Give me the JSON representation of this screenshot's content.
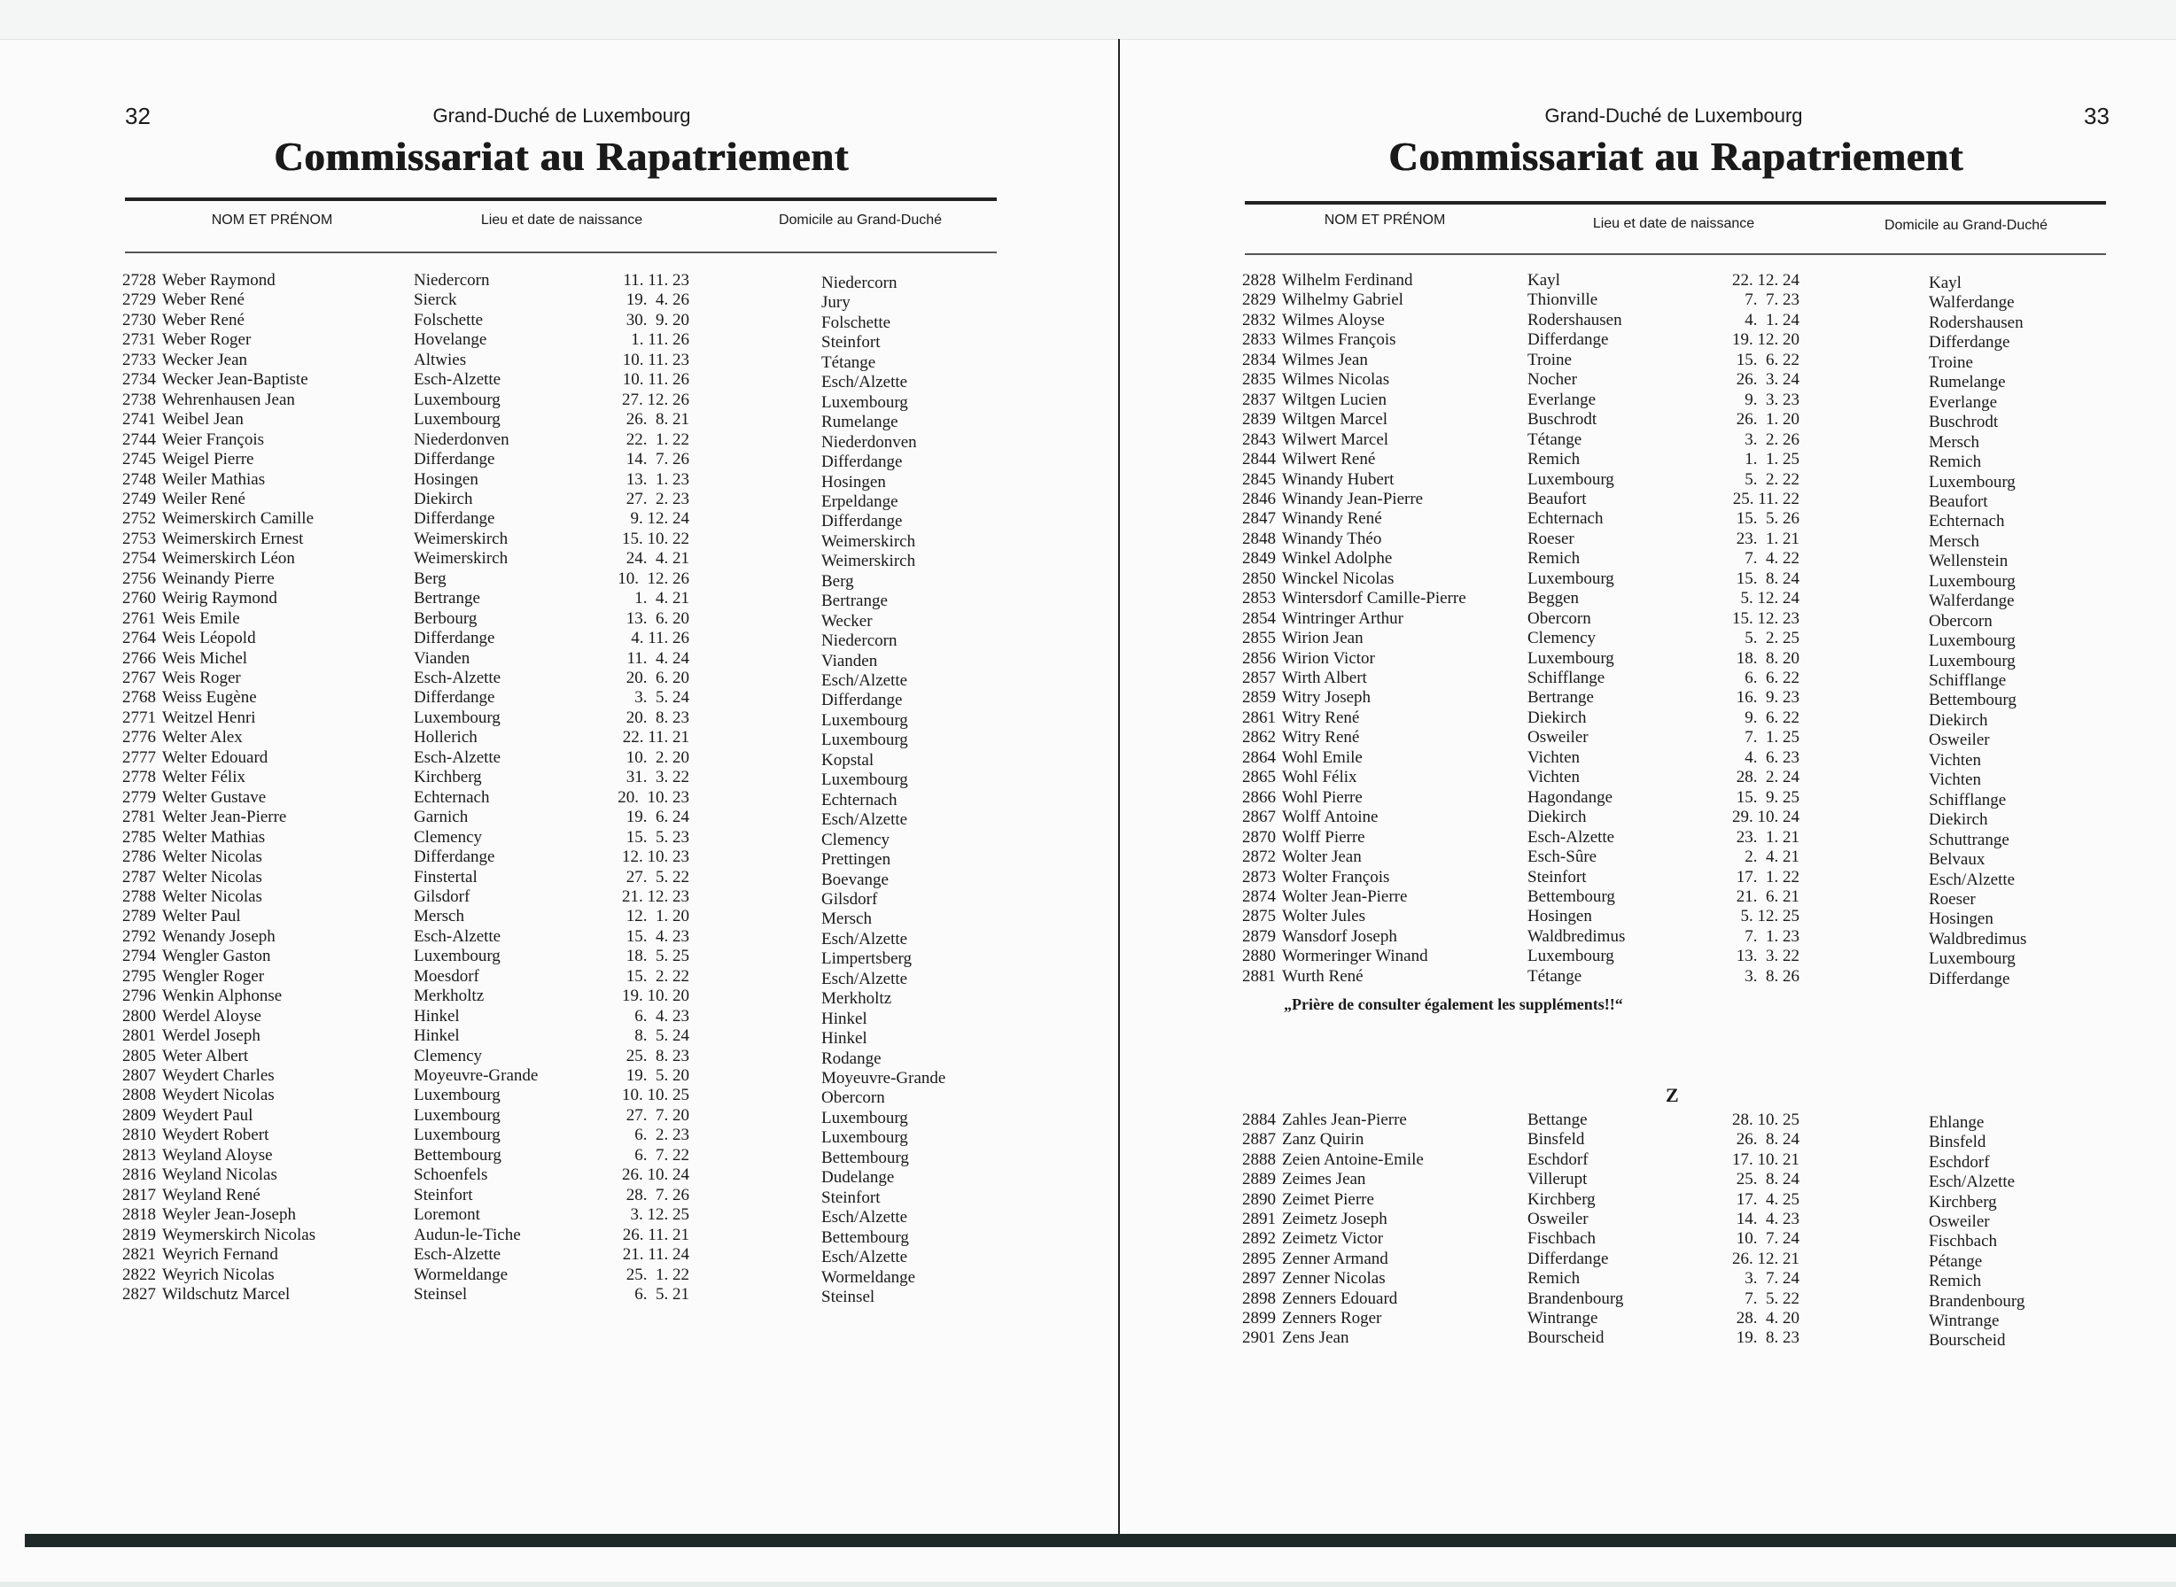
{
  "header": {
    "country": "Grand-Duché de Luxembourg",
    "title": "Commissariat au Rapatriement",
    "columns": [
      "NOM ET PRÉNOM",
      "Lieu et date de naissance",
      "Domicile au Grand-Duché"
    ]
  },
  "left_page": {
    "page_number": "32",
    "rows": [
      [
        "2728",
        "Weber Raymond",
        "Niedercorn",
        "11. 11. 23",
        "Niedercorn"
      ],
      [
        "2729",
        "Weber René",
        "Sierck",
        "19.  4. 26",
        "Jury"
      ],
      [
        "2730",
        "Weber René",
        "Folschette",
        "30.  9. 20",
        "Folschette"
      ],
      [
        "2731",
        "Weber Roger",
        "Hovelange",
        "1. 11. 26",
        "Steinfort"
      ],
      [
        "2733",
        "Wecker Jean",
        "Altwies",
        "10. 11. 23",
        "Tétange"
      ],
      [
        "2734",
        "Wecker Jean-Baptiste",
        "Esch-Alzette",
        "10. 11. 26",
        "Esch/Alzette"
      ],
      [
        "2738",
        "Wehrenhausen Jean",
        "Luxembourg",
        "27. 12. 26",
        "Luxembourg"
      ],
      [
        "2741",
        "Weibel Jean",
        "Luxembourg",
        "26.  8. 21",
        "Rumelange"
      ],
      [
        "2744",
        "Weier François",
        "Niederdonven",
        "22.  1. 22",
        "Niederdonven"
      ],
      [
        "2745",
        "Weigel Pierre",
        "Differdange",
        "14.  7. 26",
        "Differdange"
      ],
      [
        "2748",
        "Weiler Mathias",
        "Hosingen",
        "13.  1. 23",
        "Hosingen"
      ],
      [
        "2749",
        "Weiler René",
        "Diekirch",
        "27.  2. 23",
        "Erpeldange"
      ],
      [
        "2752",
        "Weimerskirch Camille",
        "Differdange",
        "9. 12. 24",
        "Differdange"
      ],
      [
        "2753",
        "Weimerskirch Ernest",
        "Weimerskirch",
        "15. 10. 22",
        "Weimerskirch"
      ],
      [
        "2754",
        "Weimerskirch Léon",
        "Weimerskirch",
        "24.  4. 21",
        "Weimerskirch"
      ],
      [
        "2756",
        "Weinandy Pierre",
        "Berg",
        "10.  12. 26",
        "Berg"
      ],
      [
        "2760",
        "Weirig Raymond",
        "Bertrange",
        "1.  4. 21",
        "Bertrange"
      ],
      [
        "2761",
        "Weis Emile",
        "Berbourg",
        "13.  6. 20",
        "Wecker"
      ],
      [
        "2764",
        "Weis Léopold",
        "Differdange",
        "4. 11. 26",
        "Niedercorn"
      ],
      [
        "2766",
        "Weis Michel",
        "Vianden",
        "11.  4. 24",
        "Vianden"
      ],
      [
        "2767",
        "Weis Roger",
        "Esch-Alzette",
        "20.  6. 20",
        "Esch/Alzette"
      ],
      [
        "2768",
        "Weiss Eugène",
        "Differdange",
        "3.  5. 24",
        "Differdange"
      ],
      [
        "2771",
        "Weitzel Henri",
        "Luxembourg",
        "20.  8. 23",
        "Luxembourg"
      ],
      [
        "2776",
        "Welter Alex",
        "Hollerich",
        "22. 11. 21",
        "Luxembourg"
      ],
      [
        "2777",
        "Welter Edouard",
        "Esch-Alzette",
        "10.  2. 20",
        "Kopstal"
      ],
      [
        "2778",
        "Welter Félix",
        "Kirchberg",
        "31.  3. 22",
        "Luxembourg"
      ],
      [
        "2779",
        "Welter Gustave",
        "Echternach",
        "20.  10. 23",
        "Echternach"
      ],
      [
        "2781",
        "Welter Jean-Pierre",
        "Garnich",
        "19.  6. 24",
        "Esch/Alzette"
      ],
      [
        "2785",
        "Welter Mathias",
        "Clemency",
        "15.  5. 23",
        "Clemency"
      ],
      [
        "2786",
        "Welter Nicolas",
        "Differdange",
        "12. 10. 23",
        "Prettingen"
      ],
      [
        "2787",
        "Welter Nicolas",
        "Finstertal",
        "27.  5. 22",
        "Boevange"
      ],
      [
        "2788",
        "Welter Nicolas",
        "Gilsdorf",
        "21. 12. 23",
        "Gilsdorf"
      ],
      [
        "2789",
        "Welter Paul",
        "Mersch",
        "12.  1. 20",
        "Mersch"
      ],
      [
        "2792",
        "Wenandy Joseph",
        "Esch-Alzette",
        "15.  4. 23",
        "Esch/Alzette"
      ],
      [
        "2794",
        "Wengler Gaston",
        "Luxembourg",
        "18.  5. 25",
        "Limpertsberg"
      ],
      [
        "2795",
        "Wengler Roger",
        "Moesdorf",
        "15.  2. 22",
        "Esch/Alzette"
      ],
      [
        "2796",
        "Wenkin Alphonse",
        "Merkholtz",
        "19. 10. 20",
        "Merkholtz"
      ],
      [
        "2800",
        "Werdel Aloyse",
        "Hinkel",
        "6.  4. 23",
        "Hinkel"
      ],
      [
        "2801",
        "Werdel Joseph",
        "Hinkel",
        "8.  5. 24",
        "Hinkel"
      ],
      [
        "2805",
        "Weter Albert",
        "Clemency",
        "25.  8. 23",
        "Rodange"
      ],
      [
        "2807",
        "Weydert Charles",
        "Moyeuvre-Grande",
        "19.  5. 20",
        "Moyeuvre-Grande"
      ],
      [
        "2808",
        "Weydert Nicolas",
        "Luxembourg",
        "10. 10. 25",
        "Obercorn"
      ],
      [
        "2809",
        "Weydert Paul",
        "Luxembourg",
        "27.  7. 20",
        "Luxembourg"
      ],
      [
        "2810",
        "Weydert Robert",
        "Luxembourg",
        "6.  2. 23",
        "Luxembourg"
      ],
      [
        "2813",
        "Weyland Aloyse",
        "Bettembourg",
        "6.  7. 22",
        "Bettembourg"
      ],
      [
        "2816",
        "Weyland Nicolas",
        "Schoenfels",
        "26. 10. 24",
        "Dudelange"
      ],
      [
        "2817",
        "Weyland René",
        "Steinfort",
        "28.  7. 26",
        "Steinfort"
      ],
      [
        "2818",
        "Weyler Jean-Joseph",
        "Loremont",
        "3. 12. 25",
        "Esch/Alzette"
      ],
      [
        "2819",
        "Weymerskirch Nicolas",
        "Audun-le-Tiche",
        "26. 11. 21",
        "Bettembourg"
      ],
      [
        "2821",
        "Weyrich Fernand",
        "Esch-Alzette",
        "21. 11. 24",
        "Esch/Alzette"
      ],
      [
        "2822",
        "Weyrich Nicolas",
        "Wormeldange",
        "25.  1. 22",
        "Wormeldange"
      ],
      [
        "2827",
        "Wildschutz Marcel",
        "Steinsel",
        "6.  5. 21",
        "Steinsel"
      ]
    ]
  },
  "right_page": {
    "page_number": "33",
    "rows": [
      [
        "2828",
        "Wilhelm Ferdinand",
        "Kayl",
        "22. 12. 24",
        "Kayl"
      ],
      [
        "2829",
        "Wilhelmy Gabriel",
        "Thionville",
        "7.  7. 23",
        "Walferdange"
      ],
      [
        "2832",
        "Wilmes Aloyse",
        "Rodershausen",
        "4.  1. 24",
        "Rodershausen"
      ],
      [
        "2833",
        "Wilmes François",
        "Differdange",
        "19. 12. 20",
        "Differdange"
      ],
      [
        "2834",
        "Wilmes Jean",
        "Troine",
        "15.  6. 22",
        "Troine"
      ],
      [
        "2835",
        "Wilmes Nicolas",
        "Nocher",
        "26.  3. 24",
        "Rumelange"
      ],
      [
        "2837",
        "Wiltgen Lucien",
        "Everlange",
        "9.  3. 23",
        "Everlange"
      ],
      [
        "2839",
        "Wiltgen Marcel",
        "Buschrodt",
        "26.  1. 20",
        "Buschrodt"
      ],
      [
        "2843",
        "Wilwert Marcel",
        "Tétange",
        "3.  2. 26",
        "Mersch"
      ],
      [
        "2844",
        "Wilwert René",
        "Remich",
        "1.  1. 25",
        "Remich"
      ],
      [
        "2845",
        "Winandy Hubert",
        "Luxembourg",
        "5.  2. 22",
        "Luxembourg"
      ],
      [
        "2846",
        "Winandy Jean-Pierre",
        "Beaufort",
        "25. 11. 22",
        "Beaufort"
      ],
      [
        "2847",
        "Winandy René",
        "Echternach",
        "15.  5. 26",
        "Echternach"
      ],
      [
        "2848",
        "Winandy Théo",
        "Roeser",
        "23.  1. 21",
        "Mersch"
      ],
      [
        "2849",
        "Winkel Adolphe",
        "Remich",
        "7.  4. 22",
        "Wellenstein"
      ],
      [
        "2850",
        "Winckel Nicolas",
        "Luxembourg",
        "15.  8. 24",
        "Luxembourg"
      ],
      [
        "2853",
        "Wintersdorf Camille-Pierre",
        "Beggen",
        "5. 12. 24",
        "Walferdange"
      ],
      [
        "2854",
        "Wintringer Arthur",
        "Obercorn",
        "15. 12. 23",
        "Obercorn"
      ],
      [
        "2855",
        "Wirion Jean",
        "Clemency",
        "5.  2. 25",
        "Luxembourg"
      ],
      [
        "2856",
        "Wirion Victor",
        "Luxembourg",
        "18.  8. 20",
        "Luxembourg"
      ],
      [
        "2857",
        "Wirth Albert",
        "Schifflange",
        "6.  6. 22",
        "Schifflange"
      ],
      [
        "2859",
        "Witry Joseph",
        "Bertrange",
        "16.  9. 23",
        "Bettembourg"
      ],
      [
        "2861",
        "Witry René",
        "Diekirch",
        "9.  6. 22",
        "Diekirch"
      ],
      [
        "2862",
        "Witry René",
        "Osweiler",
        "7.  1. 25",
        "Osweiler"
      ],
      [
        "2864",
        "Wohl Emile",
        "Vichten",
        "4.  6. 23",
        "Vichten"
      ],
      [
        "2865",
        "Wohl Félix",
        "Vichten",
        "28.  2. 24",
        "Vichten"
      ],
      [
        "2866",
        "Wohl Pierre",
        "Hagondange",
        "15.  9. 25",
        "Schifflange"
      ],
      [
        "2867",
        "Wolff Antoine",
        "Diekirch",
        "29. 10. 24",
        "Diekirch"
      ],
      [
        "2870",
        "Wolff Pierre",
        "Esch-Alzette",
        "23.  1. 21",
        "Schuttrange"
      ],
      [
        "2872",
        "Wolter Jean",
        "Esch-Sûre",
        "2.  4. 21",
        "Belvaux"
      ],
      [
        "2873",
        "Wolter François",
        "Steinfort",
        "17.  1. 22",
        "Esch/Alzette"
      ],
      [
        "2874",
        "Wolter Jean-Pierre",
        "Bettembourg",
        "21.  6. 21",
        "Roeser"
      ],
      [
        "2875",
        "Wolter Jules",
        "Hosingen",
        "5. 12. 25",
        "Hosingen"
      ],
      [
        "2879",
        "Wansdorf Joseph",
        "Waldbredimus",
        "7.  1. 23",
        "Waldbredimus"
      ],
      [
        "2880",
        "Wormeringer Winand",
        "Luxembourg",
        "13.  3. 22",
        "Luxembourg"
      ],
      [
        "2881",
        "Wurth René",
        "Tétange",
        "3.  8. 26",
        "Differdange"
      ]
    ],
    "note": "„Prière de consulter également les suppléments!!“",
    "section_letter": "Z",
    "z_rows": [
      [
        "2884",
        "Zahles Jean-Pierre",
        "Bettange",
        "28. 10. 25",
        "Ehlange"
      ],
      [
        "2887",
        "Zanz Quirin",
        "Binsfeld",
        "26.  8. 24",
        "Binsfeld"
      ],
      [
        "2888",
        "Zeien Antoine-Emile",
        "Eschdorf",
        "17. 10. 21",
        "Eschdorf"
      ],
      [
        "2889",
        "Zeimes Jean",
        "Villerupt",
        "25.  8. 24",
        "Esch/Alzette"
      ],
      [
        "2890",
        "Zeimet Pierre",
        "Kirchberg",
        "17.  4. 25",
        "Kirchberg"
      ],
      [
        "2891",
        "Zeimetz Joseph",
        "Osweiler",
        "14.  4. 23",
        "Osweiler"
      ],
      [
        "2892",
        "Zeimetz Victor",
        "Fischbach",
        "10.  7. 24",
        "Fischbach"
      ],
      [
        "2895",
        "Zenner Armand",
        "Differdange",
        "26. 12. 21",
        "Pétange"
      ],
      [
        "2897",
        "Zenner Nicolas",
        "Remich",
        "3.  7. 24",
        "Remich"
      ],
      [
        "2898",
        "Zenners Edouard",
        "Brandenbourg",
        "7.  5. 22",
        "Brandenbourg"
      ],
      [
        "2899",
        "Zenners Roger",
        "Wintrange",
        "28.  4. 20",
        "Wintrange"
      ],
      [
        "2901",
        "Zens Jean",
        "Bourscheid",
        "19.  8. 23",
        "Bourscheid"
      ]
    ]
  }
}
